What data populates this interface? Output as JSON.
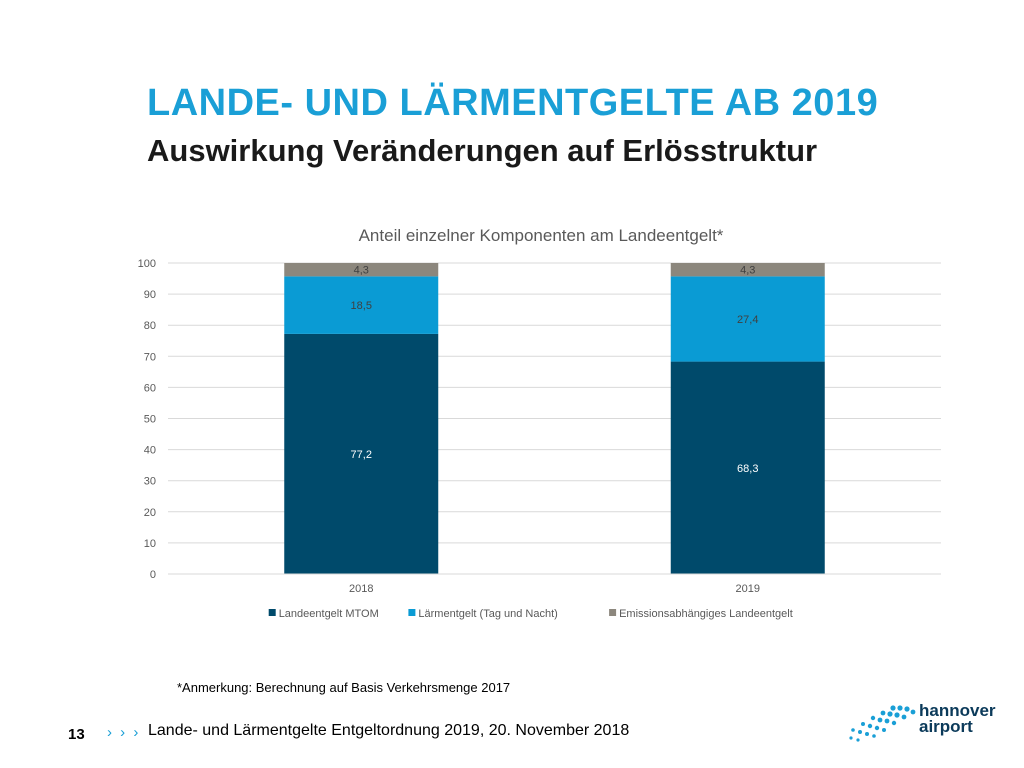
{
  "slide": {
    "title": "LANDE- UND LÄRMENTGELTE AB 2019",
    "subtitle": "Auswirkung Veränderungen auf Erlösstruktur",
    "footnote": "*Anmerkung: Berechnung auf Basis Verkehrsmenge 2017",
    "page_number": "13",
    "footer_chevrons": "› › ›",
    "footer_text": "Lande- und Lärmentgelte Entgeltordnung 2019, 20. November 2018",
    "logo_line1": "hannover",
    "logo_line2": "airport"
  },
  "chart_data": {
    "type": "bar",
    "stacked": true,
    "title": "Anteil einzelner Komponenten am Landeentgelt*",
    "categories": [
      "2018",
      "2019"
    ],
    "series": [
      {
        "name": "Landeentgelt MTOM",
        "values": [
          77.2,
          68.3
        ],
        "labels": [
          "77,2",
          "68,3"
        ],
        "color": "#004a6b",
        "label_color": "#ffffff"
      },
      {
        "name": "Lärmentgelt (Tag und Nacht)",
        "values": [
          18.5,
          27.4
        ],
        "labels": [
          "18,5",
          "27,4"
        ],
        "color": "#0a9bd4",
        "label_color": "#404040"
      },
      {
        "name": "Emissionsabhängiges Landeentgelt",
        "values": [
          4.3,
          4.3
        ],
        "labels": [
          "4,3",
          "4,3"
        ],
        "color": "#8c877d",
        "label_color": "#404040"
      }
    ],
    "ylim": [
      0,
      100
    ],
    "yticks": [
      "0",
      "10",
      "20",
      "30",
      "40",
      "50",
      "60",
      "70",
      "80",
      "90",
      "100"
    ],
    "grid": true,
    "legend": "bottom"
  }
}
